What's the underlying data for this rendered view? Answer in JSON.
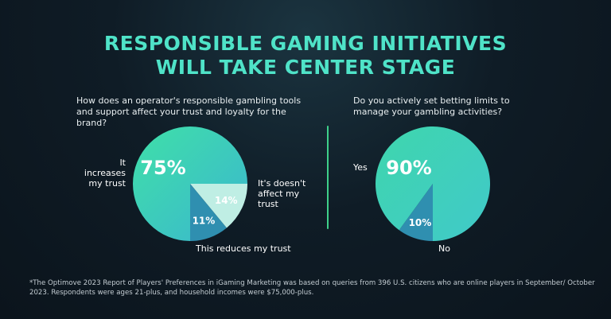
{
  "title_line1": "RESPONSIBLE GAMING INITIATIVES",
  "title_line2": "WILL TAKE CENTER STAGE",
  "colors": {
    "accent": "#4fe3c8",
    "divider": "#3ed08a",
    "slice_light": "#bfeee4",
    "slice_mid": "#2f8fb0"
  },
  "chart_data": [
    {
      "type": "pie",
      "title": "How does an operator's responsible gambling tools and support affect your trust and loyalty for the brand?",
      "slices": [
        {
          "label": "It increases my trust",
          "value": 75,
          "display": "75%"
        },
        {
          "label": "It's doesn't affect my trust",
          "value": 14,
          "display": "14%"
        },
        {
          "label": "This reduces my trust",
          "value": 11,
          "display": "11%"
        }
      ]
    },
    {
      "type": "pie",
      "title": "Do you actively set betting limits to manage your gambling activities?",
      "slices": [
        {
          "label": "Yes",
          "value": 90,
          "display": "90%"
        },
        {
          "label": "No",
          "value": 10,
          "display": "10%"
        }
      ]
    }
  ],
  "footnote": "*The Optimove 2023 Report of Players' Preferences in iGaming Marketing was based on queries from 396 U.S. citizens who are online players in September/ October 2023. Respondents were ages 21-plus, and household incomes were $75,000-plus."
}
